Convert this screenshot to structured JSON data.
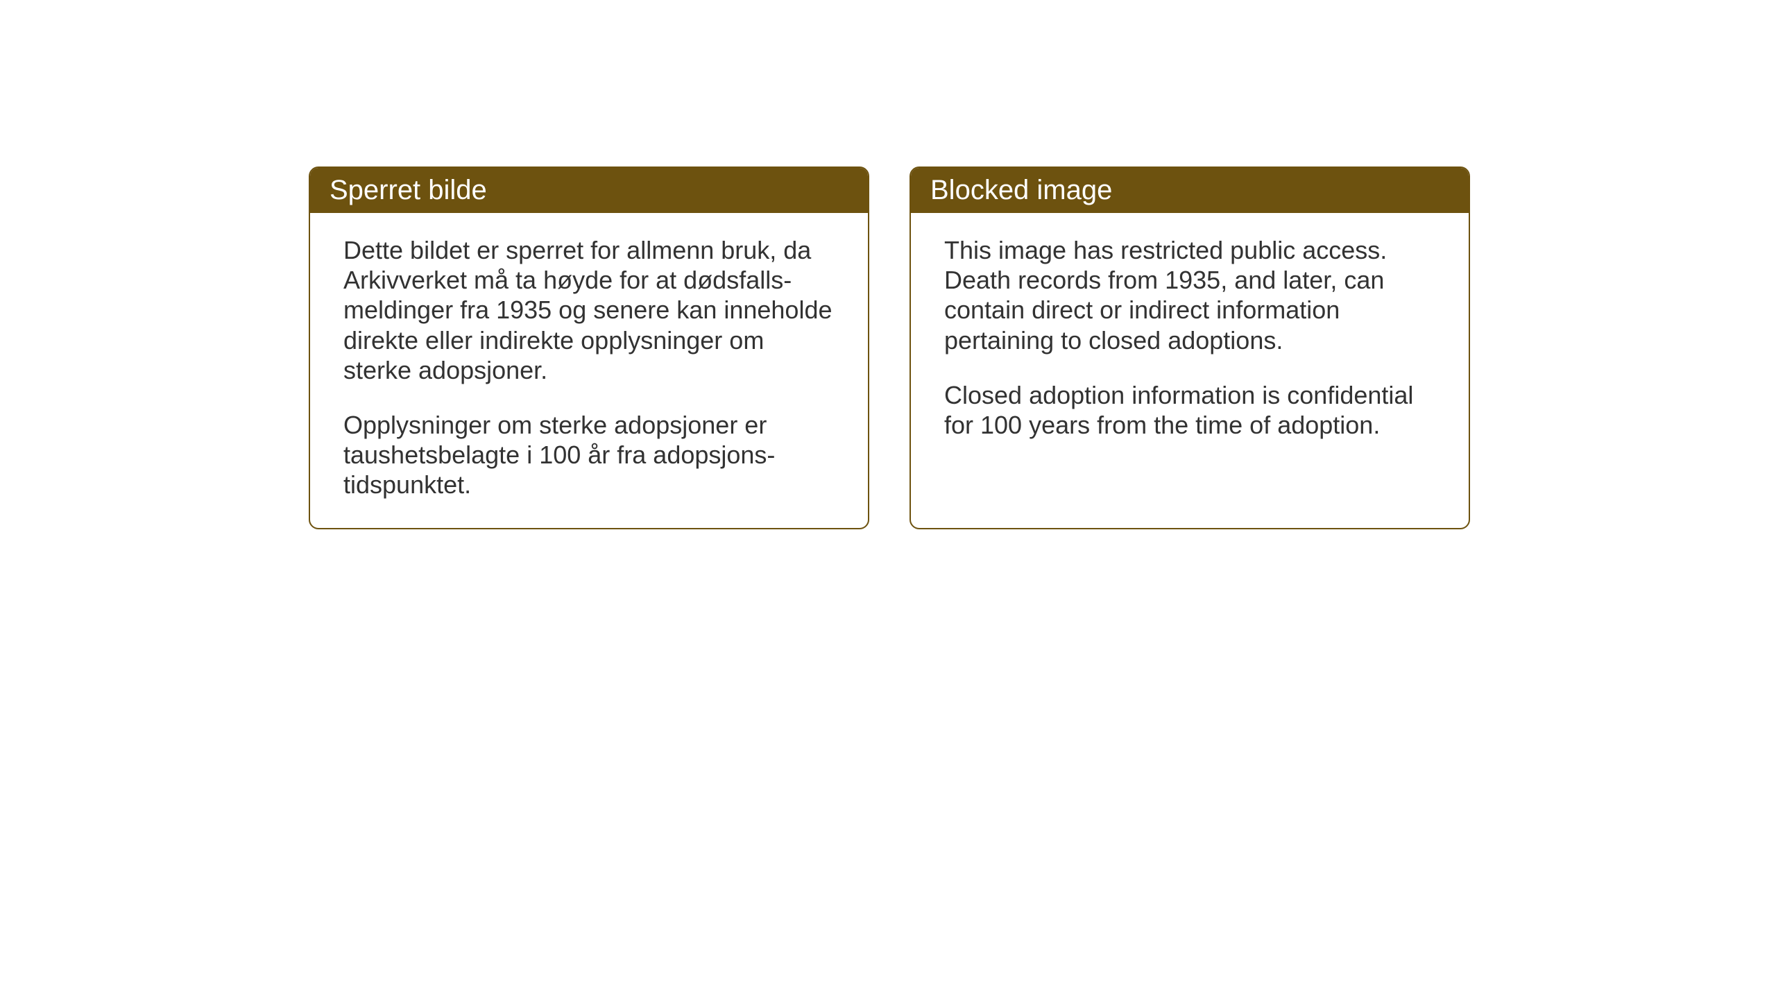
{
  "cards": [
    {
      "title": "Sperret bilde",
      "paragraph1": "Dette bildet er sperret for allmenn bruk, da Arkivverket må ta høyde for at dødsfalls-meldinger fra 1935 og senere kan inneholde direkte eller indirekte opplysninger om sterke adopsjoner.",
      "paragraph2": "Opplysninger om sterke adopsjoner er taushetsbelagte i 100 år fra adopsjons-tidspunktet."
    },
    {
      "title": "Blocked image",
      "paragraph1": "This image has restricted public access. Death records from 1935, and later, can contain direct or indirect information pertaining to closed adoptions.",
      "paragraph2": "Closed adoption information is confidential for 100 years from the time of adoption."
    }
  ],
  "styling": {
    "header_bg_color": "#6d520f",
    "header_text_color": "#ffffff",
    "border_color": "#6d520f",
    "body_text_color": "#323232",
    "card_bg_color": "#ffffff",
    "page_bg_color": "#ffffff",
    "title_fontsize": 40,
    "body_fontsize": 36,
    "border_radius": 14,
    "border_width": 2
  }
}
